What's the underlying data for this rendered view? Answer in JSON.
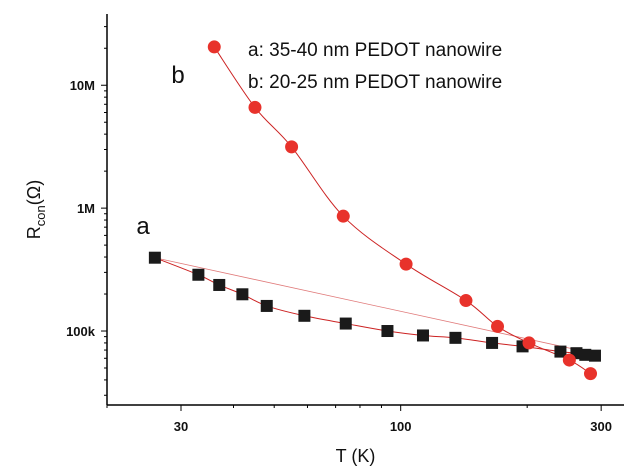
{
  "chart_data": {
    "type": "scatter",
    "title": "",
    "xlabel": "T (K)",
    "ylabel_main": "R",
    "ylabel_sub": "con",
    "ylabel_unit": "(Ω)",
    "x_scale": "log",
    "y_scale": "log",
    "xlim": [
      20,
      340
    ],
    "ylim": [
      25000,
      38000000
    ],
    "x_ticks": [
      {
        "value": 30,
        "label": "30"
      },
      {
        "value": 100,
        "label": "100"
      },
      {
        "value": 300,
        "label": "300"
      }
    ],
    "y_ticks": [
      {
        "value": 100000,
        "label": "100k"
      },
      {
        "value": 1000000,
        "label": "1M"
      },
      {
        "value": 10000000,
        "label": "10M"
      }
    ],
    "grid": false,
    "legend": {
      "placement": "top-right",
      "entries": [
        "a: 35-40 nm PEDOT nanowire",
        "b: 20-25 nm PEDOT nanowire"
      ]
    },
    "annotations": [
      {
        "text": "a",
        "series": "a"
      },
      {
        "text": "b",
        "series": "b"
      }
    ],
    "series": [
      {
        "name": "a",
        "marker": "square",
        "color": "#1a1a1a",
        "line_color": "#cc2222",
        "x": [
          26,
          33,
          37,
          42,
          48,
          59,
          74,
          93,
          113,
          135,
          165,
          195,
          240,
          262,
          275,
          290
        ],
        "y": [
          395000,
          287000,
          237000,
          199000,
          160000,
          133000,
          115000,
          100000,
          92000,
          88000,
          80000,
          75000,
          68000,
          66000,
          64000,
          63000
        ]
      },
      {
        "name": "b",
        "marker": "circle",
        "color": "#e8322b",
        "line_color": "#cc2222",
        "x": [
          36,
          45,
          55,
          73,
          103,
          143,
          170,
          202,
          252,
          283
        ],
        "y": [
          20500000,
          6600000,
          3150000,
          860000,
          350000,
          177000,
          109000,
          80000,
          58000,
          45000
        ]
      }
    ]
  }
}
